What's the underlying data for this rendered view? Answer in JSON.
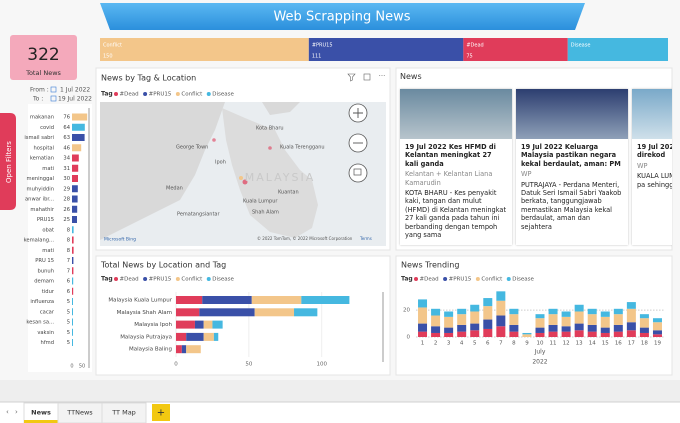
{
  "header": {
    "title": "Web Scrapping News"
  },
  "kpi": {
    "value": 322,
    "label": "Total News"
  },
  "date_range": {
    "from_label": "From :",
    "from": "1 Jul 2022",
    "to_label": "To :",
    "to": "19 Jul 2022"
  },
  "filter_pane": {
    "label": "Open Filters"
  },
  "tag_totals": {
    "type": "stacked_bar",
    "categories": [
      "Conflict",
      "#PRU15",
      "#Dead",
      "Disease"
    ],
    "values": [
      150,
      111,
      75,
      72
    ],
    "value_labels": [
      "150",
      "111",
      "75",
      null
    ],
    "colors": [
      "#f3c68a",
      "#3a50a8",
      "#e03c5a",
      "#45b8e0"
    ]
  },
  "tag_list": {
    "type": "hbar",
    "categories": [
      "makanan",
      "covid",
      "ismail sabri",
      "hospital",
      "kematian",
      "mati",
      "meninggal",
      "muhyiddin",
      "anwar ibr...",
      "mahathir",
      "PRU15",
      "obat",
      "kemalang...",
      "mati",
      "PRU 15",
      "bunuh",
      "demam",
      "tidur",
      "influenza",
      "cacar",
      "kesan sa...",
      "vaksin",
      "hfmd"
    ],
    "values": [
      76,
      64,
      63,
      46,
      34,
      31,
      30,
      29,
      28,
      26,
      25,
      8,
      8,
      8,
      7,
      7,
      6,
      6,
      5,
      5,
      5,
      5,
      5
    ],
    "colors": [
      "#f3c68a",
      "#45b8e0",
      "#3a50a8",
      "#f3c68a",
      "#e03c5a",
      "#e03c5a",
      "#e03c5a",
      "#3a50a8",
      "#3a50a8",
      "#3a50a8",
      "#3a50a8",
      "#45b8e0",
      "#e03c5a",
      "#e03c5a",
      "#3a50a8",
      "#e03c5a",
      "#45b8e0",
      "#e03c5a",
      "#45b8e0",
      "#45b8e0",
      "#45b8e0",
      "#45b8e0",
      "#45b8e0"
    ],
    "xlim": [
      0,
      80
    ],
    "xticks": [
      0,
      50
    ]
  },
  "map": {
    "title": "News by Tag & Location",
    "legend_title": "Tag",
    "legend": [
      "#Dead",
      "#PRU15",
      "Conflict",
      "Disease"
    ],
    "legend_colors": [
      "#e03c5a",
      "#3a50a8",
      "#f3c68a",
      "#45b8e0"
    ],
    "places": [
      "Kota Bharu",
      "George Town",
      "Ipoh",
      "Kuala Terengganu",
      "Kuantan",
      "Medan",
      "Shah Alam",
      "Kuala Lumpur",
      "Pematangsiantar"
    ],
    "watermark": "MALAYSIA",
    "attribution": "© 2022 TomTom, © 2022 Microsoft Corporation",
    "terms": "Terms",
    "provider": "Microsoft Bing"
  },
  "news": {
    "title": "News",
    "cards": [
      {
        "date": "19 Jul 2022",
        "headline": "Kes HFMD di Kelantan meningkat 27 kali ganda",
        "source": "Kelantan + Kelantan Liana Kamarudin",
        "snippet": "KOTA BHARU - Kes penyakit kaki, tangan dan mulut (HFMD) di Kelantan meningkat 27 kali ganda pada tahun ini berbanding dengan tempoh yang sama"
      },
      {
        "date": "19 Jul 2022",
        "headline": "Keluarga Malaysia pastikan negara kekal berdaulat, aman: PM",
        "source": "WP",
        "snippet": "PUTRAJAYA - Perdana Menteri, Datuk Seri Ismail Sabri Yaakob berkata, tanggungjawab memastikan Malaysia kekal berdaulat, aman dan sejahtera"
      },
      {
        "date": "19 Jul 2022",
        "headline": "Kes Kelantan direkod",
        "source": "WP",
        "snippet": "KUALA LUMPUR bahawa 3,936 pa sehingga"
      }
    ]
  },
  "location_chart": {
    "type": "stacked_hbar",
    "title": "Total News by Location and Tag",
    "legend_title": "Tag",
    "categories": [
      "Malaysia Kuala Lumpur",
      "Malaysia Shah Alam",
      "Malaysia Ipoh",
      "Malaysia Putrajaya",
      "Malaysia Baling"
    ],
    "series": [
      {
        "name": "#Dead",
        "color": "#e03c5a",
        "values": [
          18,
          16,
          13,
          7,
          4
        ]
      },
      {
        "name": "#PRU15",
        "color": "#3a50a8",
        "values": [
          34,
          38,
          6,
          12,
          3
        ]
      },
      {
        "name": "Conflict",
        "color": "#f3c68a",
        "values": [
          34,
          27,
          6,
          7,
          10
        ]
      },
      {
        "name": "Disease",
        "color": "#45b8e0",
        "values": [
          33,
          16,
          7,
          3,
          0
        ]
      }
    ],
    "xlim": [
      0,
      140
    ],
    "xticks": [
      0,
      50,
      100
    ]
  },
  "trending": {
    "type": "stacked_column",
    "title": "News Trending",
    "legend_title": "Tag",
    "categories": [
      "1",
      "2",
      "3",
      "4",
      "5",
      "6",
      "7",
      "8",
      "9",
      "10",
      "11",
      "12",
      "13",
      "14",
      "15",
      "16",
      "17",
      "18",
      "19"
    ],
    "x_label": "July",
    "x_sublabel": "2022",
    "series": [
      {
        "name": "#Dead",
        "color": "#e03c5a",
        "values": [
          4,
          3,
          3,
          4,
          5,
          6,
          8,
          4,
          0,
          3,
          4,
          4,
          5,
          4,
          3,
          4,
          5,
          3,
          2
        ]
      },
      {
        "name": "#PRU15",
        "color": "#3a50a8",
        "values": [
          6,
          5,
          4,
          5,
          5,
          7,
          8,
          5,
          0,
          4,
          5,
          4,
          5,
          5,
          4,
          5,
          6,
          4,
          3
        ]
      },
      {
        "name": "Conflict",
        "color": "#f3c68a",
        "values": [
          12,
          8,
          8,
          8,
          9,
          10,
          11,
          8,
          2,
          7,
          8,
          7,
          9,
          8,
          8,
          8,
          10,
          7,
          6
        ]
      },
      {
        "name": "Disease",
        "color": "#45b8e0",
        "values": [
          6,
          5,
          4,
          4,
          5,
          6,
          7,
          4,
          1,
          3,
          4,
          4,
          5,
          4,
          4,
          4,
          5,
          3,
          3
        ]
      }
    ],
    "ylim": [
      0,
      35
    ],
    "yticks": [
      0,
      20
    ]
  },
  "tabs": [
    "News",
    "TTNews",
    "TT Map"
  ]
}
